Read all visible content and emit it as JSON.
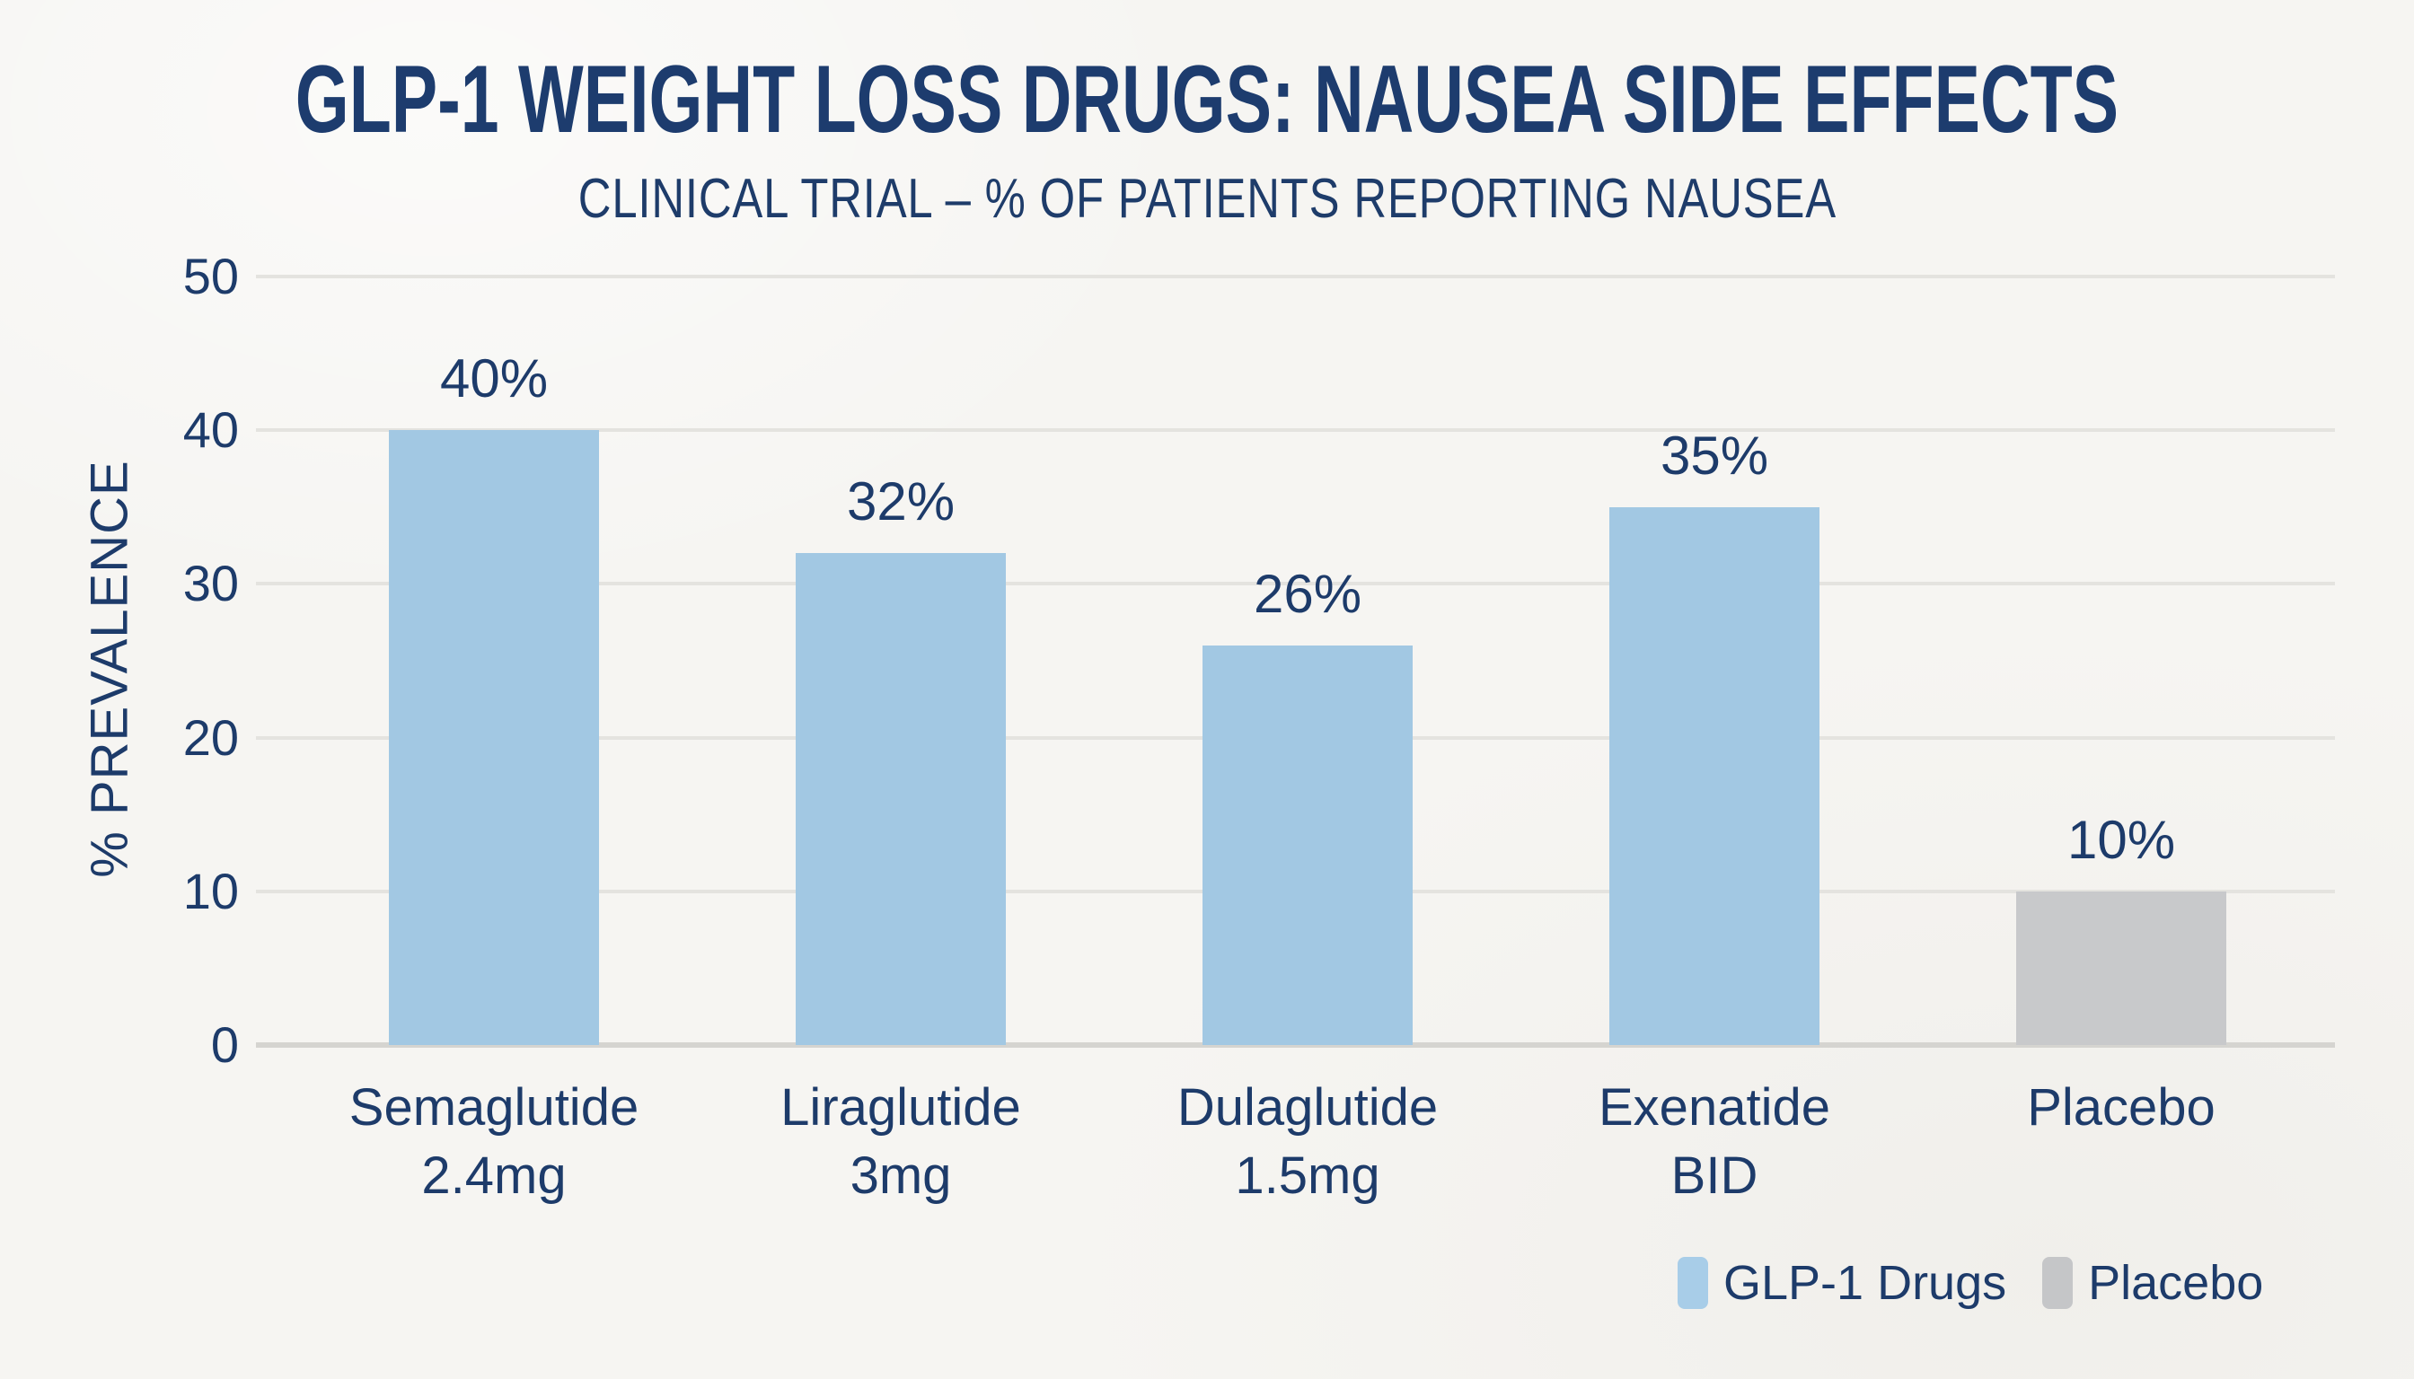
{
  "colors": {
    "background": "#f6f5f2",
    "text_navy": "#1d3b6a",
    "gridline": "#e4e3df",
    "baseline": "#d5d4d0",
    "glp1_bar": "#a2c8e3",
    "placebo_bar": "#c8c9cb",
    "legend_glp1_swatch": "#a8cde8",
    "legend_placebo_swatch": "#c5c6c8"
  },
  "chart_data": {
    "type": "bar",
    "title": "GLP-1 WEIGHT LOSS DRUGS: NAUSEA SIDE EFFECTS",
    "subtitle": "CLINICAL TRIAL – % OF PATIENTS REPORTING NAUSEA",
    "ylabel": "% PREVALENCE",
    "xlabel": "",
    "categories": [
      "Semaglutide\n2.4mg",
      "Liraglutide\n3mg",
      "Dulaglutide\n1.5mg",
      "Exenatide\nBID",
      "Placebo"
    ],
    "values": [
      40,
      32,
      26,
      35,
      10
    ],
    "value_labels": [
      "40%",
      "32%",
      "26%",
      "35%",
      "10%"
    ],
    "bar_series": [
      "GLP-1 Drugs",
      "GLP-1 Drugs",
      "GLP-1 Drugs",
      "GLP-1 Drugs",
      "Placebo"
    ],
    "bar_colors": [
      "#a2c8e3",
      "#a2c8e3",
      "#a2c8e3",
      "#a2c8e3",
      "#c8c9cb"
    ],
    "ylim": [
      0,
      50
    ],
    "yticks": [
      0,
      10,
      20,
      30,
      40,
      50
    ],
    "grid": true,
    "legend": {
      "position": "bottom-right",
      "entries": [
        {
          "label": "GLP-1 Drugs",
          "color": "#a8cde8"
        },
        {
          "label": "Placebo",
          "color": "#c5c6c8"
        }
      ]
    }
  }
}
